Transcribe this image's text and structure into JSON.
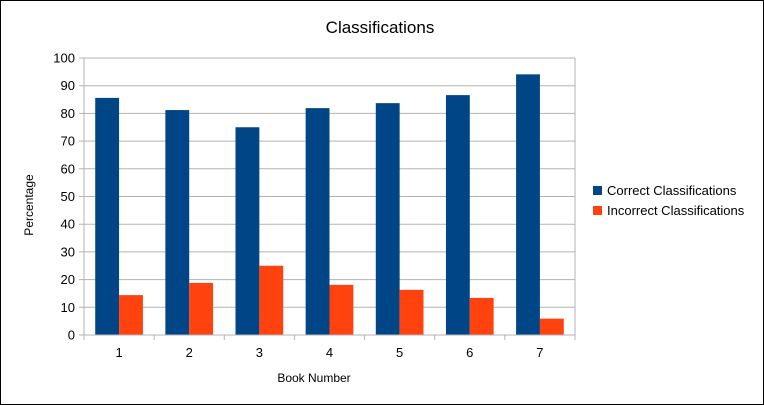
{
  "chart_data": {
    "type": "bar",
    "title": "Classifications",
    "xlabel": "Book Number",
    "ylabel": "Percentage",
    "categories": [
      "1",
      "2",
      "3",
      "4",
      "5",
      "6",
      "7"
    ],
    "ylim": [
      0,
      100
    ],
    "yticks": [
      "0",
      "10",
      "20",
      "30",
      "40",
      "50",
      "60",
      "70",
      "80",
      "90",
      "100"
    ],
    "grid": true,
    "legend_position": "right",
    "series": [
      {
        "name": "Correct Classifications",
        "color": "#004586",
        "values": [
          85.6,
          81.2,
          75.0,
          81.9,
          83.7,
          86.6,
          94.1
        ]
      },
      {
        "name": "Incorrect Classifications",
        "color": "#ff420e",
        "values": [
          14.4,
          18.8,
          25.0,
          18.1,
          16.3,
          13.4,
          5.9
        ]
      }
    ]
  }
}
